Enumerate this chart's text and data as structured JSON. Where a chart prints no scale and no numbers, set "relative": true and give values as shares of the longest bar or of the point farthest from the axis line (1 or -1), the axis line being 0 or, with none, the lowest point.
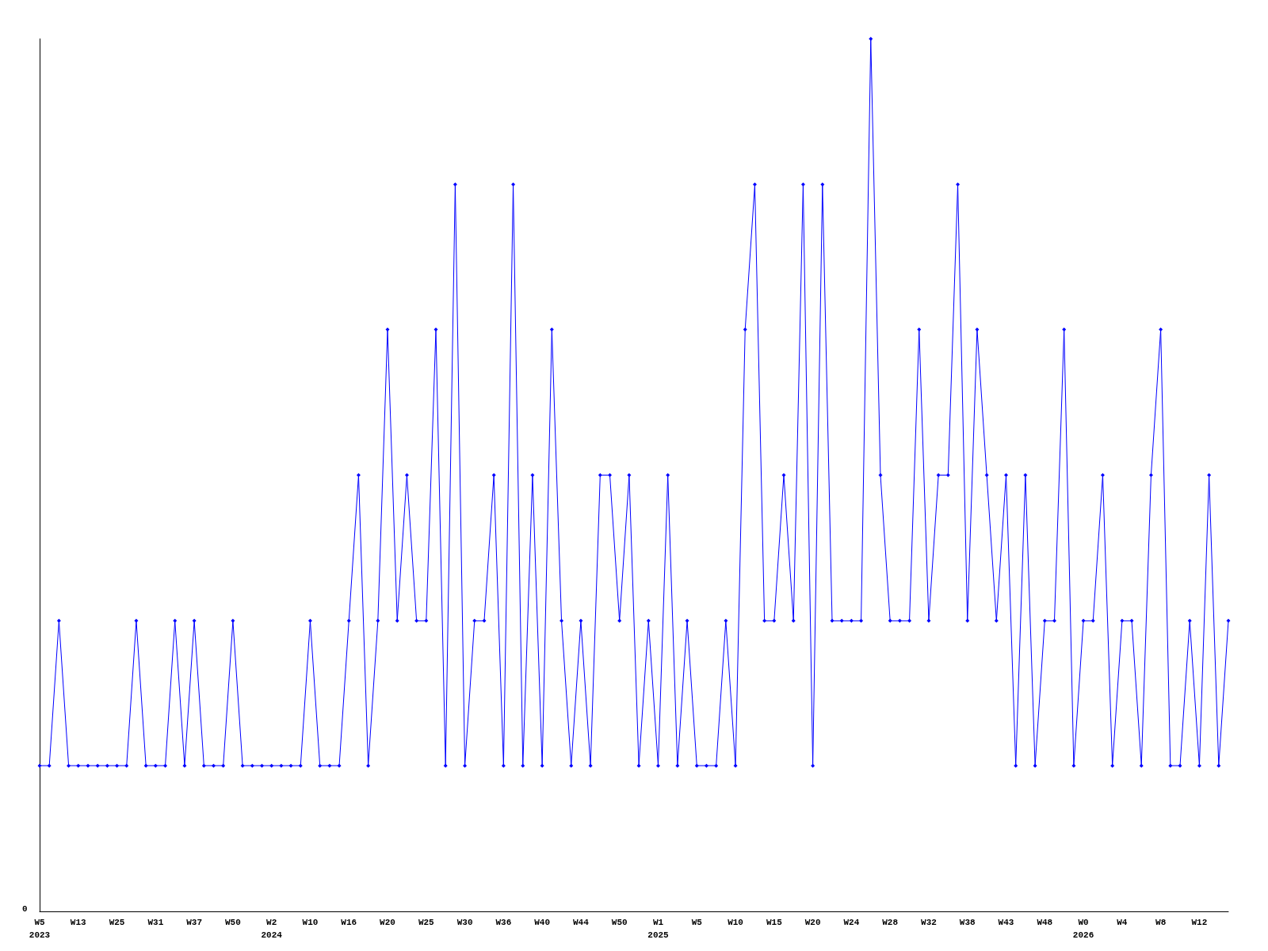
{
  "chart_data": {
    "type": "line",
    "relative": true,
    "marker": "diamond",
    "grid": false,
    "annotations": [
      "0"
    ],
    "categories": [
      "W5\n2023",
      null,
      null,
      null,
      "W13",
      null,
      null,
      null,
      "W25",
      null,
      null,
      null,
      "W31",
      null,
      null,
      null,
      "W37",
      null,
      null,
      null,
      "W50",
      null,
      null,
      null,
      "W2\n2024",
      null,
      null,
      null,
      "W10",
      null,
      null,
      null,
      "W16",
      null,
      null,
      null,
      "W20",
      null,
      null,
      null,
      "W25",
      null,
      null,
      null,
      "W30",
      null,
      null,
      null,
      "W36",
      null,
      null,
      null,
      "W40",
      null,
      null,
      null,
      "W44",
      null,
      null,
      null,
      "W50",
      null,
      null,
      null,
      "W1\n2025",
      null,
      null,
      null,
      "W5",
      null,
      null,
      null,
      "W10",
      null,
      null,
      null,
      "W15",
      null,
      null,
      null,
      "W20",
      null,
      null,
      null,
      "W24",
      null,
      null,
      null,
      "W28",
      null,
      null,
      null,
      "W32",
      null,
      null,
      null,
      "W38",
      null,
      null,
      null,
      "W43",
      null,
      null,
      null,
      "W48",
      null,
      null,
      null,
      "W0\n2026",
      null,
      null,
      null,
      "W4",
      null,
      null,
      null,
      "W8",
      null,
      null,
      null,
      "W12",
      null,
      null,
      null
    ],
    "series": [
      {
        "color": "#0000ff",
        "values": [
          0.167,
          0.167,
          0.333,
          0.167,
          0.167,
          0.167,
          0.167,
          0.167,
          0.167,
          0.167,
          0.333,
          0.167,
          0.167,
          0.167,
          0.333,
          0.167,
          0.333,
          0.167,
          0.167,
          0.167,
          0.333,
          0.167,
          0.167,
          0.167,
          0.167,
          0.167,
          0.167,
          0.167,
          0.333,
          0.167,
          0.167,
          0.167,
          0.333,
          0.5,
          0.167,
          0.333,
          0.667,
          0.333,
          0.5,
          0.333,
          0.333,
          0.667,
          0.167,
          0.833,
          0.167,
          0.333,
          0.333,
          0.5,
          0.167,
          0.833,
          0.167,
          0.5,
          0.167,
          0.667,
          0.333,
          0.167,
          0.333,
          0.167,
          0.5,
          0.5,
          0.333,
          0.5,
          0.167,
          0.333,
          0.167,
          0.5,
          0.167,
          0.333,
          0.167,
          0.167,
          0.167,
          0.333,
          0.167,
          0.667,
          0.833,
          0.333,
          0.333,
          0.5,
          0.333,
          0.833,
          0.167,
          0.833,
          0.333,
          0.333,
          0.333,
          0.333,
          1,
          0.5,
          0.333,
          0.333,
          0.333,
          0.667,
          0.333,
          0.5,
          0.5,
          0.833,
          0.333,
          0.667,
          0.5,
          0.333,
          0.5,
          0.167,
          0.5,
          0.167,
          0.333,
          0.333,
          0.667,
          0.167,
          0.333,
          0.333,
          0.5,
          0.167,
          0.333,
          0.333,
          0.167,
          0.5,
          0.667,
          0.167,
          0.167,
          0.333,
          0.167,
          0.5,
          0.167,
          0.333
        ]
      }
    ]
  }
}
